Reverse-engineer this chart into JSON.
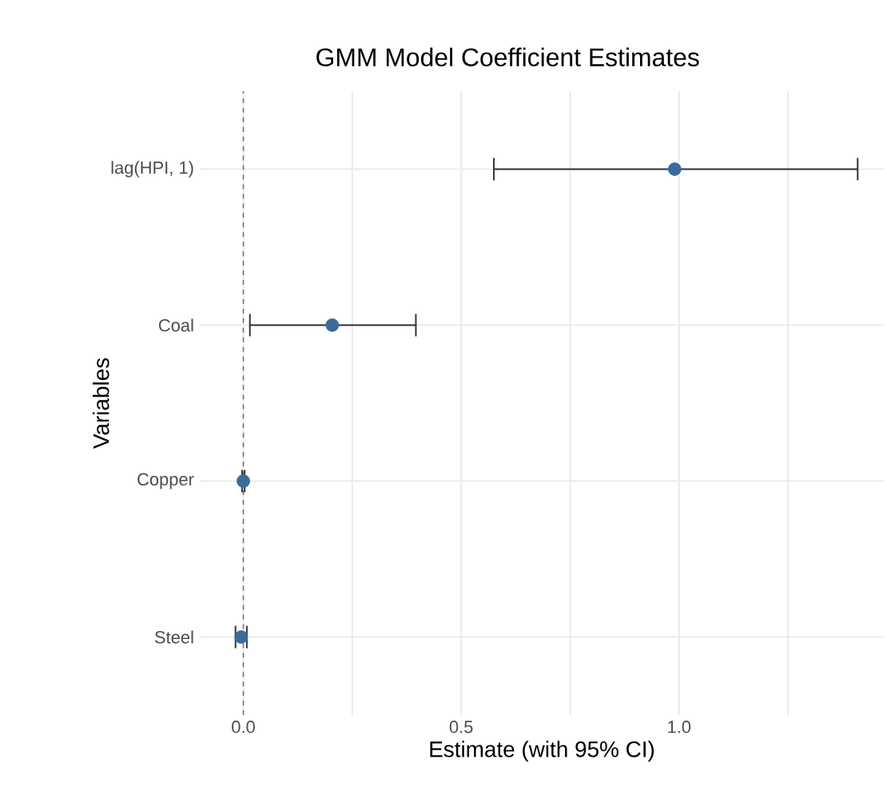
{
  "chart_data": {
    "type": "scatter",
    "title": "GMM Model Coefficient Estimates",
    "xlabel": "Estimate (with 95% CI)",
    "ylabel": "Variables",
    "orientation": "horizontal",
    "categories": [
      "lag(HPI, 1)",
      "Coal",
      "Copper",
      "Steel"
    ],
    "values": [
      0.99,
      0.204,
      0.0,
      -0.005
    ],
    "errors": [
      [
        0.575,
        1.41
      ],
      [
        0.015,
        0.396
      ],
      [
        -0.003,
        0.003
      ],
      [
        -0.018,
        0.008
      ]
    ],
    "color": "#3a6b9a",
    "marker": "circle",
    "xlim": [
      -0.1,
      1.47
    ],
    "xticks": [
      {
        "value": 0,
        "label": "0.0"
      },
      {
        "value": 0.25,
        "label": null
      },
      {
        "value": 0.5,
        "label": "0.5"
      },
      {
        "value": 0.75,
        "label": null
      },
      {
        "value": 1,
        "label": "1.0"
      },
      {
        "value": 1.25,
        "label": null
      }
    ],
    "grid": true,
    "ref_lines": [
      {
        "axis": "x",
        "value": 0,
        "label": null,
        "color": "#777777",
        "line_style": "dashed"
      }
    ]
  }
}
